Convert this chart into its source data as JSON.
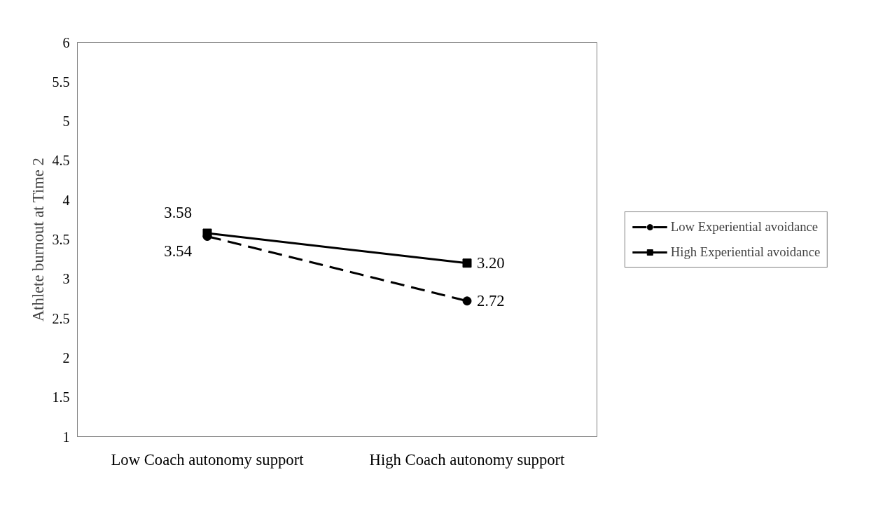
{
  "chart_data": {
    "type": "line",
    "ylabel": "Athlete burnout at Time 2",
    "categories": [
      "Low Coach autonomy support",
      "High Coach autonomy support"
    ],
    "series": [
      {
        "name": "Low Experiential avoidance",
        "color": "#000000",
        "values": [
          3.54,
          2.72
        ],
        "value_labels": [
          "3.54",
          "2.72"
        ],
        "marker": "circle",
        "line_style": "dashed"
      },
      {
        "name": "High Experiential avoidance",
        "color": "#000000",
        "values": [
          3.58,
          3.2
        ],
        "value_labels": [
          "3.58",
          "3.20"
        ],
        "marker": "square",
        "line_style": "solid"
      }
    ],
    "ylim": [
      1,
      6
    ],
    "yticks": [
      1,
      1.5,
      2,
      2.5,
      3,
      3.5,
      4,
      4.5,
      5,
      5.5,
      6
    ],
    "grid": false,
    "legend": "right"
  }
}
